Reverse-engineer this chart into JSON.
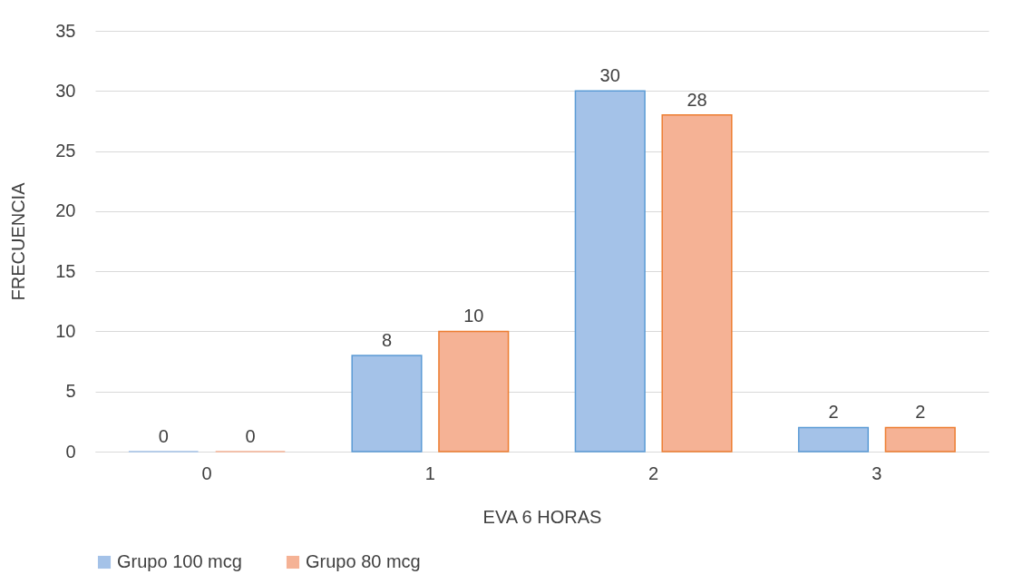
{
  "chart_data": {
    "type": "bar",
    "xlabel": "EVA 6 HORAS",
    "ylabel": "FRECUENCIA",
    "categories": [
      "0",
      "1",
      "2",
      "3"
    ],
    "series": [
      {
        "name": "Grupo  100 mcg",
        "color": "#a4c2e8",
        "values": [
          0,
          8,
          30,
          2
        ]
      },
      {
        "name": "Grupo 80 mcg",
        "color": "#f5b295",
        "values": [
          0,
          10,
          28,
          2
        ]
      }
    ],
    "ylim": [
      0,
      35
    ],
    "yticks": [
      0,
      5,
      10,
      15,
      20,
      25,
      30,
      35
    ],
    "grid": "y",
    "legend": "bottom",
    "data_labels": true
  }
}
